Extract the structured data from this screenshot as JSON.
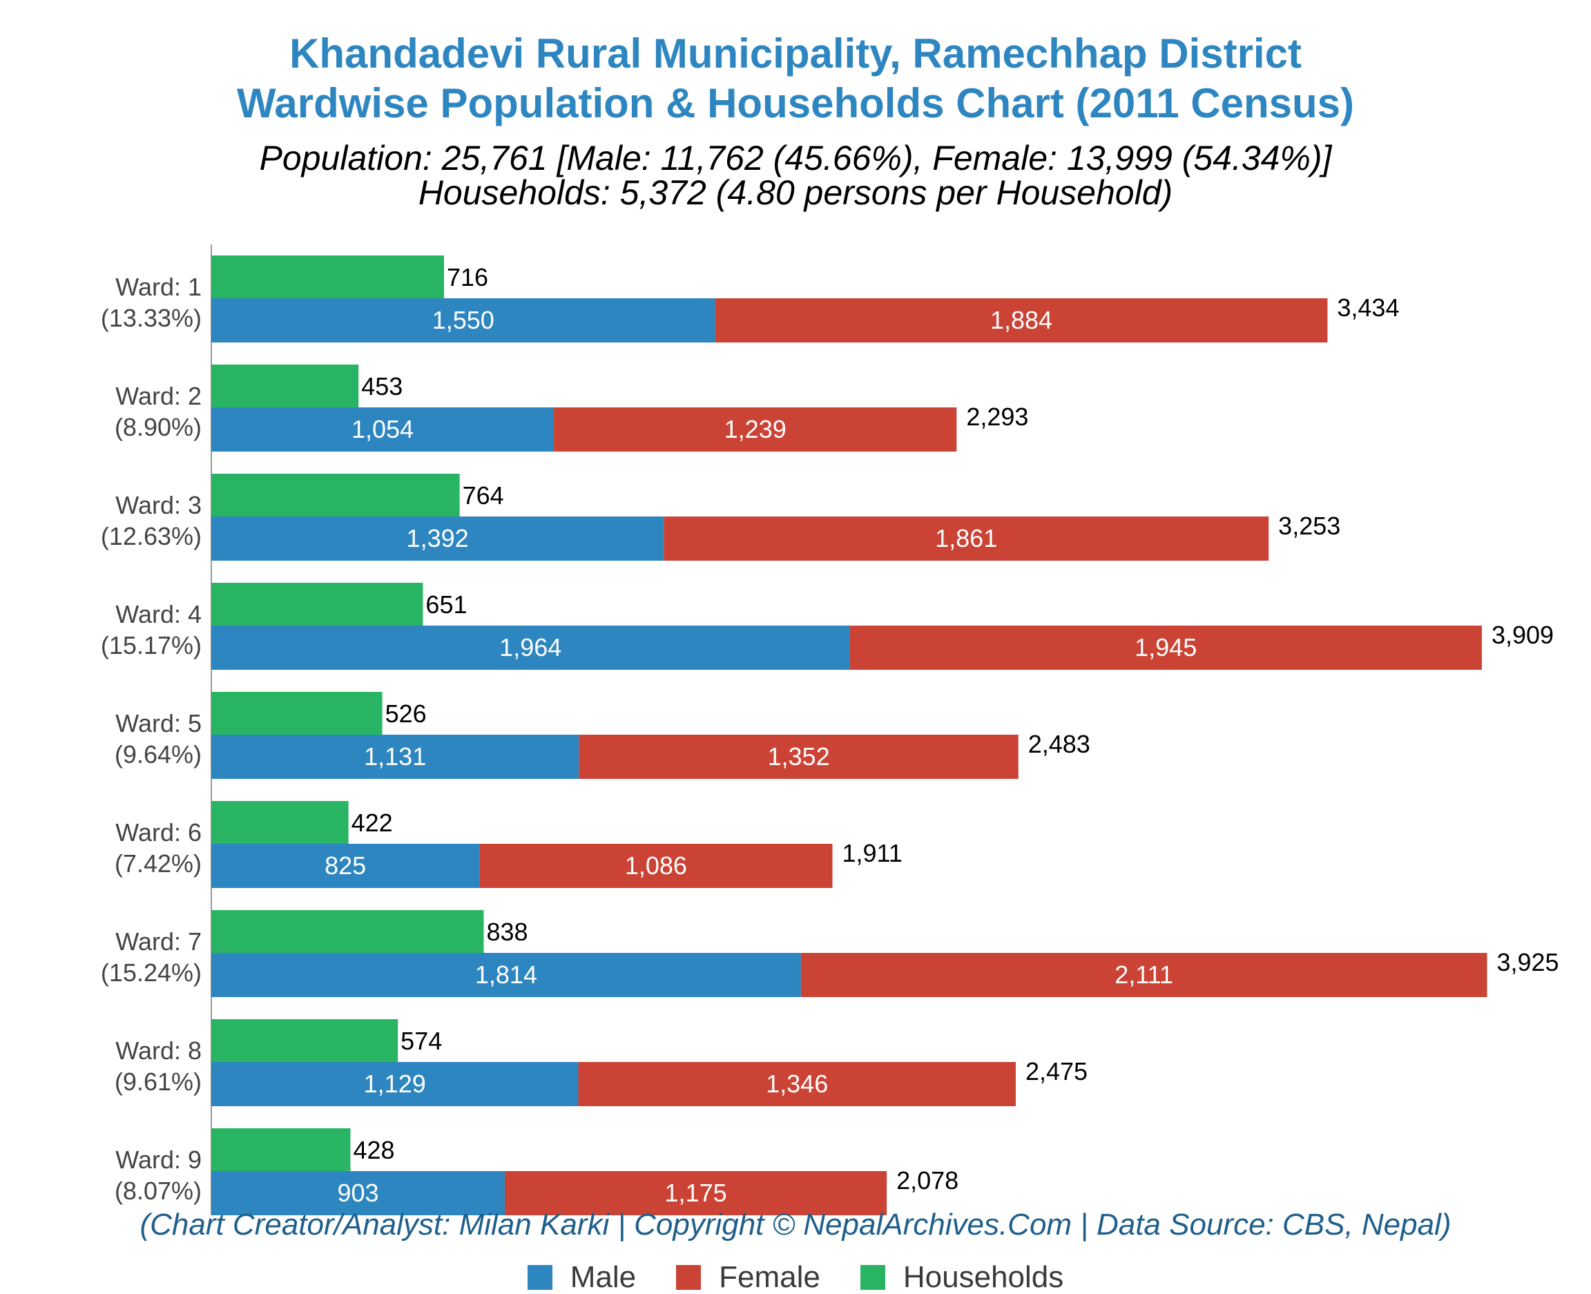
{
  "title_line1": "Khandadevi Rural Municipality, Ramechhap District",
  "title_line2": "Wardwise Population & Households Chart (2011 Census)",
  "subtitle_line1": "Population: 25,761 [Male: 11,762 (45.66%), Female: 13,999 (54.34%)]",
  "subtitle_line2": "Households: 5,372 (4.80 persons per Household)",
  "credit": "(Chart Creator/Analyst: Milan Karki | Copyright © NepalArchives.Com | Data Source: CBS, Nepal)",
  "legend": [
    {
      "label": "Male",
      "color": "#2e86c1"
    },
    {
      "label": "Female",
      "color": "#cb4335"
    },
    {
      "label": "Households",
      "color": "#28b463"
    }
  ],
  "chart_data": {
    "type": "bar",
    "orientation": "horizontal",
    "categories": [
      "Ward: 1",
      "Ward: 2",
      "Ward: 3",
      "Ward: 4",
      "Ward: 5",
      "Ward: 6",
      "Ward: 7",
      "Ward: 8",
      "Ward: 9"
    ],
    "category_shares": [
      "(13.33%)",
      "(8.90%)",
      "(12.63%)",
      "(15.17%)",
      "(9.64%)",
      "(7.42%)",
      "(15.24%)",
      "(9.61%)",
      "(8.07%)"
    ],
    "series": [
      {
        "name": "Male",
        "color": "#2e86c1",
        "stack": "population",
        "values": [
          1550,
          1054,
          1392,
          1964,
          1131,
          825,
          1814,
          1129,
          903
        ],
        "labels": [
          "1,550",
          "1,054",
          "1,392",
          "1,964",
          "1,131",
          "825",
          "1,814",
          "1,129",
          "903"
        ]
      },
      {
        "name": "Female",
        "color": "#cb4335",
        "stack": "population",
        "values": [
          1884,
          1239,
          1861,
          1945,
          1352,
          1086,
          2111,
          1346,
          1175
        ],
        "labels": [
          "1,884",
          "1,239",
          "1,861",
          "1,945",
          "1,352",
          "1,086",
          "2,111",
          "1,346",
          "1,175"
        ]
      },
      {
        "name": "Households",
        "color": "#28b463",
        "stack": "households",
        "values": [
          716,
          453,
          764,
          651,
          526,
          422,
          838,
          574,
          428
        ],
        "labels": [
          "716",
          "453",
          "764",
          "651",
          "526",
          "422",
          "838",
          "574",
          "428"
        ]
      }
    ],
    "totals": [
      3434,
      2293,
      3253,
      3909,
      2483,
      1911,
      3925,
      2475,
      2078
    ],
    "total_labels": [
      "3,434",
      "2,293",
      "3,253",
      "3,909",
      "2,483",
      "1,911",
      "3,925",
      "2,475",
      "2,078"
    ],
    "xlim": [
      0,
      4200
    ],
    "grid": false,
    "legend_position": "bottom"
  }
}
